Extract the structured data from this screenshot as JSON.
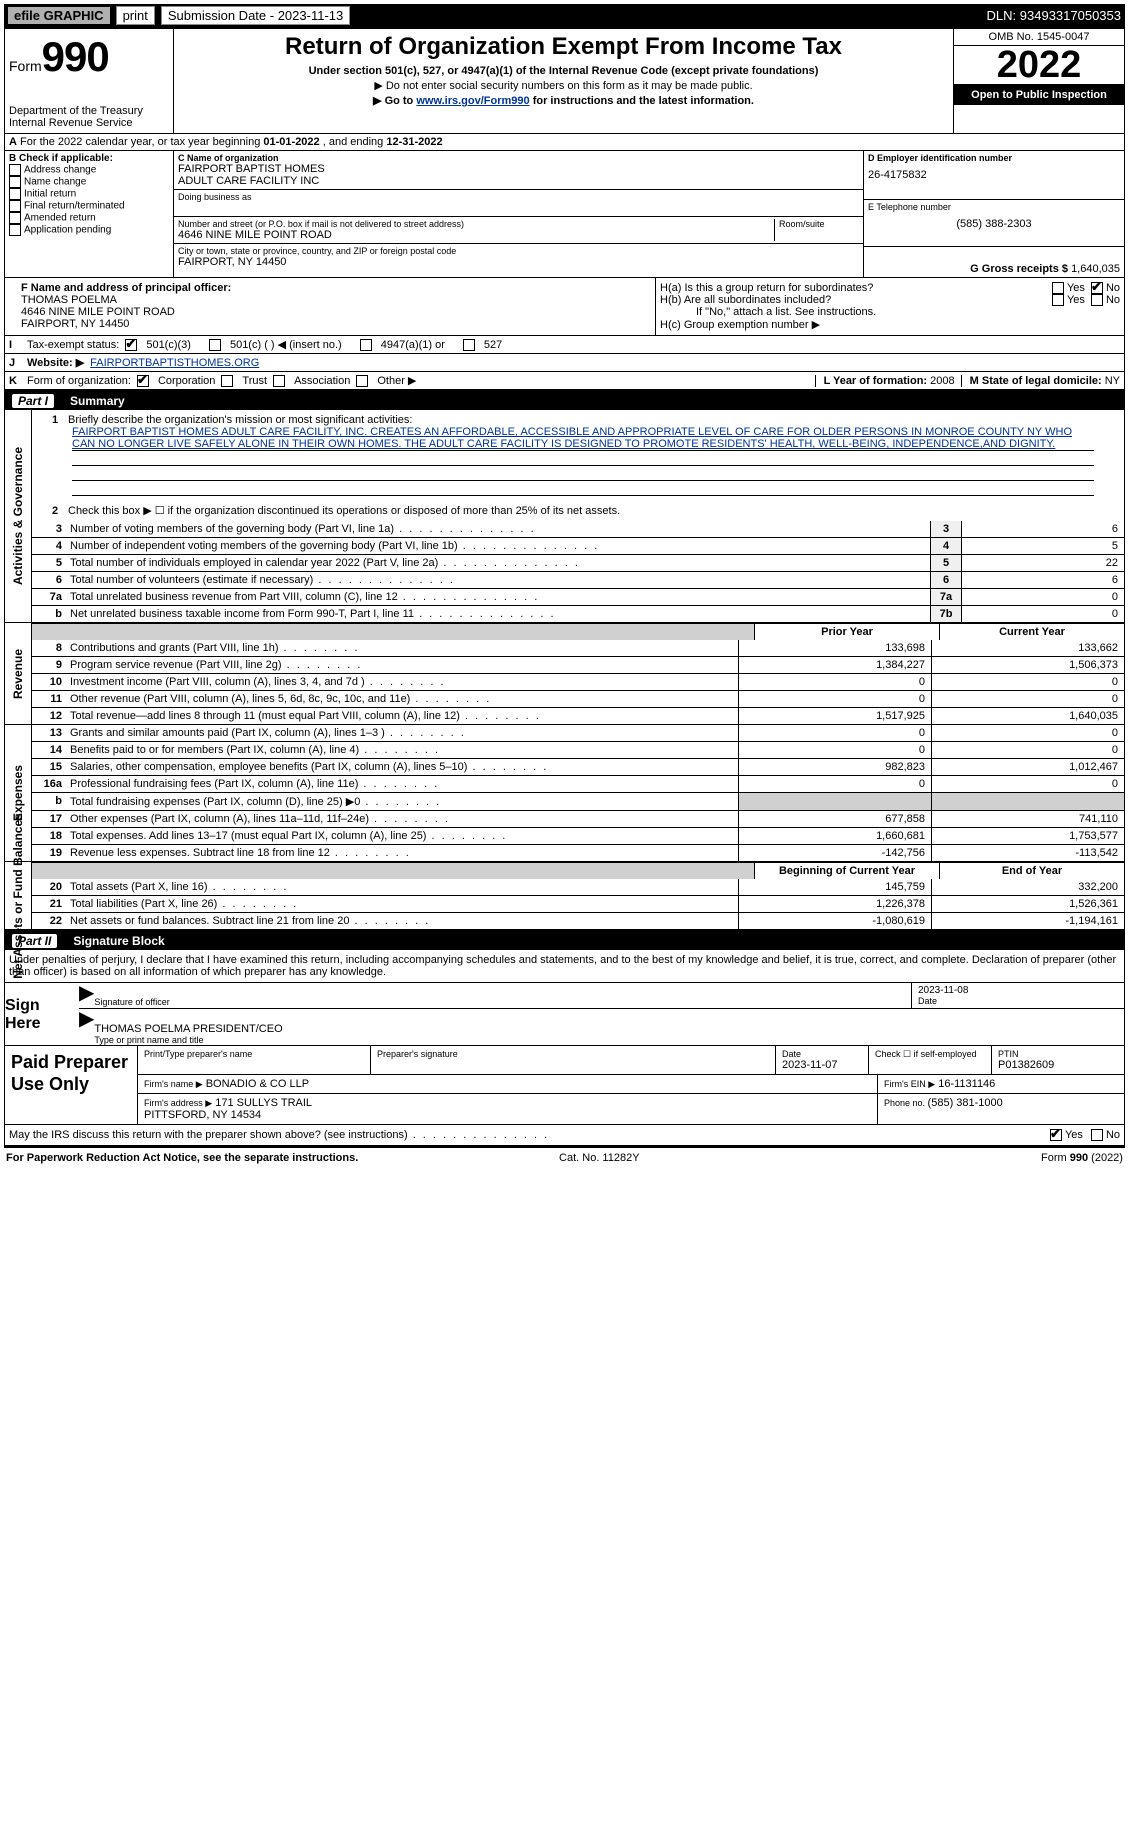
{
  "topbar": {
    "efile": "efile GRAPHIC",
    "print": "print",
    "subdate_lbl": "Submission Date - 2023-11-13",
    "dln": "DLN: 93493317050353"
  },
  "header": {
    "form_prefix": "Form",
    "form_num": "990",
    "dept": "Department of the Treasury\nInternal Revenue Service",
    "title": "Return of Organization Exempt From Income Tax",
    "sub": "Under section 501(c), 527, or 4947(a)(1) of the Internal Revenue Code (except private foundations)",
    "note1": "▶ Do not enter social security numbers on this form as it may be made public.",
    "note2_a": "▶ Go to ",
    "note2_link": "www.irs.gov/Form990",
    "note2_b": " for instructions and the latest information.",
    "omb": "OMB No. 1545-0047",
    "year": "2022",
    "opi": "Open to Public Inspection"
  },
  "row_a": {
    "lbl_a": "A",
    "txt_a": "For the 2022 calendar year, or tax year beginning ",
    "begin": "01-01-2022",
    "mid": "   , and ending ",
    "end": "12-31-2022"
  },
  "sec_b": {
    "lbl": "B Check if applicable:",
    "opts": [
      "Address change",
      "Name change",
      "Initial return",
      "Final return/terminated",
      "Amended return",
      "Application pending"
    ],
    "c_name_lbl": "C Name of organization",
    "c_name": "FAIRPORT BAPTIST HOMES\nADULT CARE FACILITY INC",
    "dba_lbl": "Doing business as",
    "addr_lbl": "Number and street (or P.O. box if mail is not delivered to street address)",
    "room_lbl": "Room/suite",
    "addr": "4646 NINE MILE POINT ROAD",
    "city_lbl": "City or town, state or province, country, and ZIP or foreign postal code",
    "city": "FAIRPORT, NY  14450",
    "d_lbl": "D Employer identification number",
    "d_val": "26-4175832",
    "e_lbl": "E Telephone number",
    "e_val": "(585) 388-2303",
    "g_lbl": "G Gross receipts $",
    "g_val": "1,640,035"
  },
  "fgh": {
    "f_lbl": "F  Name and address of principal officer:",
    "f_name": "THOMAS POELMA",
    "f_addr": "4646 NINE MILE POINT ROAD\nFAIRPORT, NY  14450",
    "ha": "H(a)  Is this a group return for subordinates?",
    "hb": "H(b)  Are all subordinates included?",
    "hb_note": "If \"No,\" attach a list. See instructions.",
    "hc": "H(c)  Group exemption number ▶",
    "yes": "Yes",
    "no": "No"
  },
  "row_i": {
    "lbl": "I",
    "tax": "Tax-exempt status:",
    "o1": "501(c)(3)",
    "o2": "501(c) (  ) ◀ (insert no.)",
    "o3": "4947(a)(1) or",
    "o4": "527"
  },
  "row_j": {
    "lbl": "J",
    "w": "Website: ▶",
    "val": " FAIRPORTBAPTISTHOMES.ORG"
  },
  "row_k": {
    "lbl": "K",
    "t": "Form of organization:",
    "o": [
      "Corporation",
      "Trust",
      "Association",
      "Other ▶"
    ],
    "l_lbl": "L Year of formation: ",
    "l_val": "2008",
    "m_lbl": "M State of legal domicile: ",
    "m_val": "NY"
  },
  "part1": {
    "hdr_p": "Part I",
    "hdr_t": "Summary",
    "q1_lbl": "1",
    "q1": "Briefly describe the organization's mission or most significant activities:",
    "mission": "FAIRPORT BAPTIST HOMES ADULT CARE FACILITY, INC. CREATES AN AFFORDABLE, ACCESSIBLE AND APPROPRIATE LEVEL OF CARE FOR OLDER PERSONS IN MONROE COUNTY NY WHO CAN NO LONGER LIVE SAFELY ALONE IN THEIR OWN HOMES. THE ADULT CARE FACILITY IS DESIGNED TO PROMOTE RESIDENTS' HEALTH, WELL-BEING, INDEPENDENCE,AND DIGNITY.",
    "q2": "Check this box ▶ ☐ if the organization discontinued its operations or disposed of more than 25% of its net assets.",
    "side_gov": "Activities & Governance",
    "side_rev": "Revenue",
    "side_exp": "Expenses",
    "side_net": "Net Assets or Fund Balances",
    "lines_gov": [
      {
        "n": "3",
        "t": "Number of voting members of the governing body (Part VI, line 1a)",
        "b": "3",
        "v": "6"
      },
      {
        "n": "4",
        "t": "Number of independent voting members of the governing body (Part VI, line 1b)",
        "b": "4",
        "v": "5"
      },
      {
        "n": "5",
        "t": "Total number of individuals employed in calendar year 2022 (Part V, line 2a)",
        "b": "5",
        "v": "22"
      },
      {
        "n": "6",
        "t": "Total number of volunteers (estimate if necessary)",
        "b": "6",
        "v": "6"
      },
      {
        "n": "7a",
        "t": "Total unrelated business revenue from Part VIII, column (C), line 12",
        "b": "7a",
        "v": "0"
      },
      {
        "n": "b",
        "t": "Net unrelated business taxable income from Form 990-T, Part I, line 11",
        "b": "7b",
        "v": "0"
      }
    ],
    "col_prior": "Prior Year",
    "col_curr": "Current Year",
    "lines_rev": [
      {
        "n": "8",
        "t": "Contributions and grants (Part VIII, line 1h)",
        "p": "133,698",
        "c": "133,662"
      },
      {
        "n": "9",
        "t": "Program service revenue (Part VIII, line 2g)",
        "p": "1,384,227",
        "c": "1,506,373"
      },
      {
        "n": "10",
        "t": "Investment income (Part VIII, column (A), lines 3, 4, and 7d )",
        "p": "0",
        "c": "0"
      },
      {
        "n": "11",
        "t": "Other revenue (Part VIII, column (A), lines 5, 6d, 8c, 9c, 10c, and 11e)",
        "p": "0",
        "c": "0"
      },
      {
        "n": "12",
        "t": "Total revenue—add lines 8 through 11 (must equal Part VIII, column (A), line 12)",
        "p": "1,517,925",
        "c": "1,640,035"
      }
    ],
    "lines_exp": [
      {
        "n": "13",
        "t": "Grants and similar amounts paid (Part IX, column (A), lines 1–3 )",
        "p": "0",
        "c": "0"
      },
      {
        "n": "14",
        "t": "Benefits paid to or for members (Part IX, column (A), line 4)",
        "p": "0",
        "c": "0"
      },
      {
        "n": "15",
        "t": "Salaries, other compensation, employee benefits (Part IX, column (A), lines 5–10)",
        "p": "982,823",
        "c": "1,012,467"
      },
      {
        "n": "16a",
        "t": "Professional fundraising fees (Part IX, column (A), line 11e)",
        "p": "0",
        "c": "0"
      },
      {
        "n": "b",
        "t": "Total fundraising expenses (Part IX, column (D), line 25) ▶0",
        "p": "",
        "c": "",
        "shaded": true
      },
      {
        "n": "17",
        "t": "Other expenses (Part IX, column (A), lines 11a–11d, 11f–24e)",
        "p": "677,858",
        "c": "741,110"
      },
      {
        "n": "18",
        "t": "Total expenses. Add lines 13–17 (must equal Part IX, column (A), line 25)",
        "p": "1,660,681",
        "c": "1,753,577"
      },
      {
        "n": "19",
        "t": "Revenue less expenses. Subtract line 18 from line 12",
        "p": "-142,756",
        "c": "-113,542"
      }
    ],
    "col_beg": "Beginning of Current Year",
    "col_end": "End of Year",
    "lines_net": [
      {
        "n": "20",
        "t": "Total assets (Part X, line 16)",
        "p": "145,759",
        "c": "332,200"
      },
      {
        "n": "21",
        "t": "Total liabilities (Part X, line 26)",
        "p": "1,226,378",
        "c": "1,526,361"
      },
      {
        "n": "22",
        "t": "Net assets or fund balances. Subtract line 21 from line 20",
        "p": "-1,080,619",
        "c": "-1,194,161"
      }
    ]
  },
  "part2": {
    "hdr_p": "Part II",
    "hdr_t": "Signature Block",
    "decl": "Under penalties of perjury, I declare that I have examined this return, including accompanying schedules and statements, and to the best of my knowledge and belief, it is true, correct, and complete. Declaration of preparer (other than officer) is based on all information of which preparer has any knowledge.",
    "sign": "Sign Here",
    "sig_off": "Signature of officer",
    "sig_date": "2023-11-08",
    "date_lbl": "Date",
    "sig_name": "THOMAS POELMA  PRESIDENT/CEO",
    "sig_name_lbl": "Type or print name and title",
    "paid": "Paid Preparer Use Only",
    "pp_name_lbl": "Print/Type preparer's name",
    "pp_sig_lbl": "Preparer's signature",
    "pp_date_lbl": "Date",
    "pp_date": "2023-11-07",
    "pp_chk_lbl": "Check ☐ if self-employed",
    "ptin_lbl": "PTIN",
    "ptin": "P01382609",
    "firm_name_lbl": "Firm's name    ▶",
    "firm_name": "BONADIO & CO LLP",
    "firm_ein_lbl": "Firm's EIN ▶",
    "firm_ein": "16-1131146",
    "firm_addr_lbl": "Firm's address ▶",
    "firm_addr": "171 SULLYS TRAIL\nPITTSFORD, NY  14534",
    "phone_lbl": "Phone no. ",
    "phone": "(585) 381-1000",
    "may": "May the IRS discuss this return with the preparer shown above? (see instructions)",
    "yes": "Yes",
    "no": "No"
  },
  "footer": {
    "l": "For Paperwork Reduction Act Notice, see the separate instructions.",
    "m": "Cat. No. 11282Y",
    "r": "Form 990 (2022)"
  }
}
